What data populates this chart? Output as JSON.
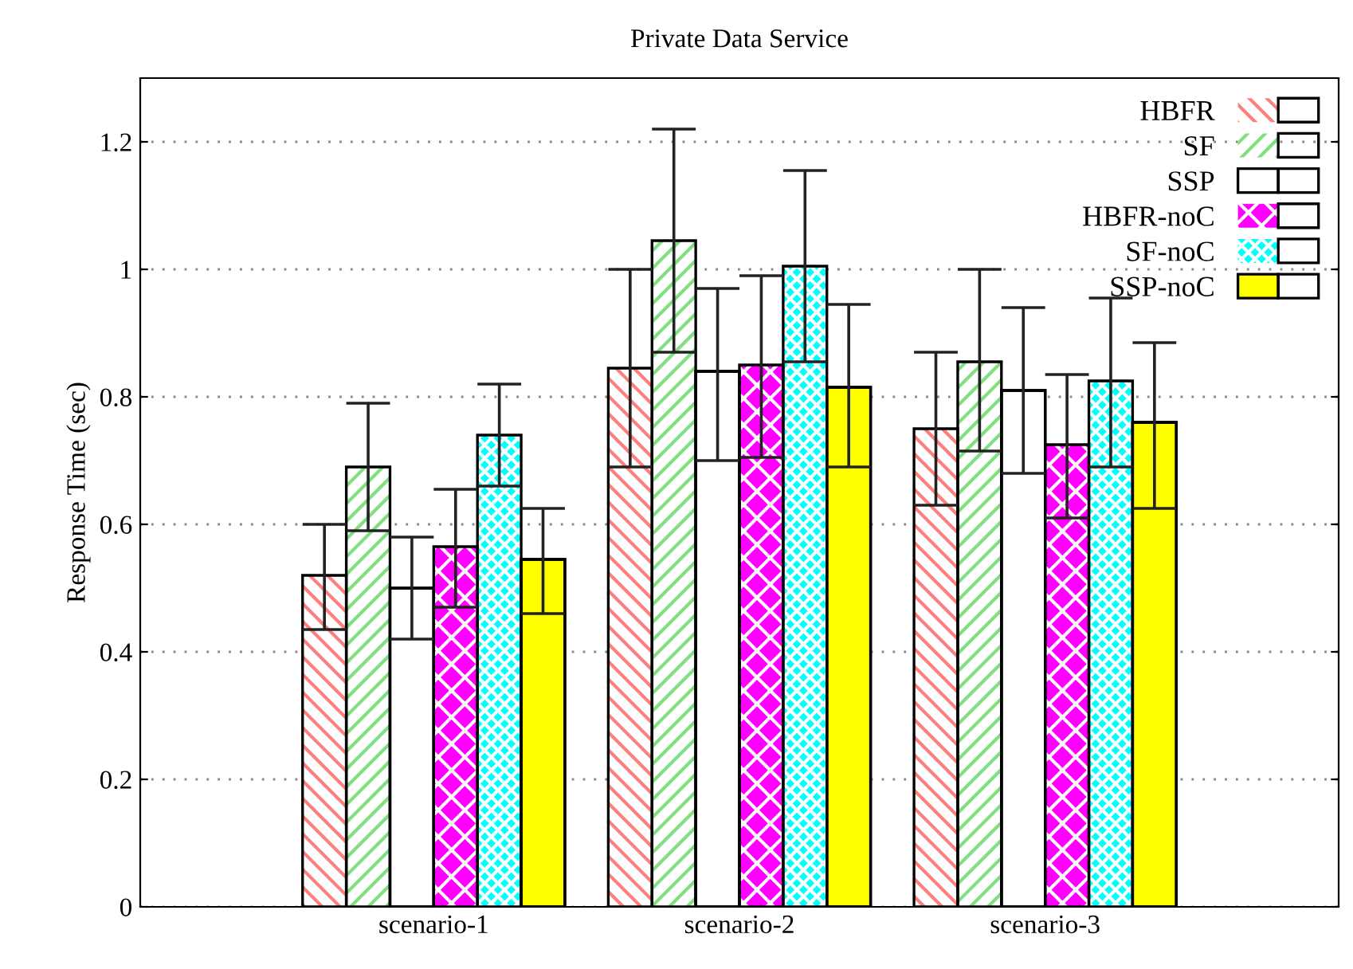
{
  "chart_data": {
    "type": "bar",
    "title": "Private Data Service",
    "ylabel": "Response Time (sec)",
    "categories": [
      "scenario-1",
      "scenario-2",
      "scenario-3"
    ],
    "series": [
      {
        "name": "HBFR",
        "color": "#ff7f7f",
        "values": [
          0.52,
          0.845,
          0.75
        ],
        "errors": [
          [
            0.435,
            0.6
          ],
          [
            0.69,
            1.0
          ],
          [
            0.63,
            0.87
          ]
        ]
      },
      {
        "name": "SF",
        "color": "#80e080",
        "values": [
          0.69,
          1.045,
          0.855
        ],
        "errors": [
          [
            0.59,
            0.79
          ],
          [
            0.87,
            1.22
          ],
          [
            0.715,
            1.0
          ]
        ]
      },
      {
        "name": "SSP",
        "color": "#000000",
        "values": [
          0.5,
          0.84,
          0.81
        ],
        "errors": [
          [
            0.42,
            0.58
          ],
          [
            0.7,
            0.97
          ],
          [
            0.68,
            0.94
          ]
        ]
      },
      {
        "name": "HBFR-noC",
        "color": "#ff00ff",
        "values": [
          0.565,
          0.85,
          0.725
        ],
        "errors": [
          [
            0.47,
            0.655
          ],
          [
            0.705,
            0.99
          ],
          [
            0.61,
            0.835
          ]
        ]
      },
      {
        "name": "SF-noC",
        "color": "#00ffff",
        "values": [
          0.74,
          1.005,
          0.825
        ],
        "errors": [
          [
            0.66,
            0.82
          ],
          [
            0.855,
            1.155
          ],
          [
            0.69,
            0.955
          ]
        ]
      },
      {
        "name": "SSP-noC",
        "color": "#ffff00",
        "values": [
          0.545,
          0.815,
          0.76
        ],
        "errors": [
          [
            0.46,
            0.625
          ],
          [
            0.69,
            0.945
          ],
          [
            0.625,
            0.885
          ]
        ]
      }
    ],
    "ylim": [
      0,
      1.3
    ],
    "yticks": [
      0,
      0.2,
      0.4,
      0.6,
      0.8,
      1,
      1.2
    ],
    "grid": "y",
    "legend": "top right"
  }
}
